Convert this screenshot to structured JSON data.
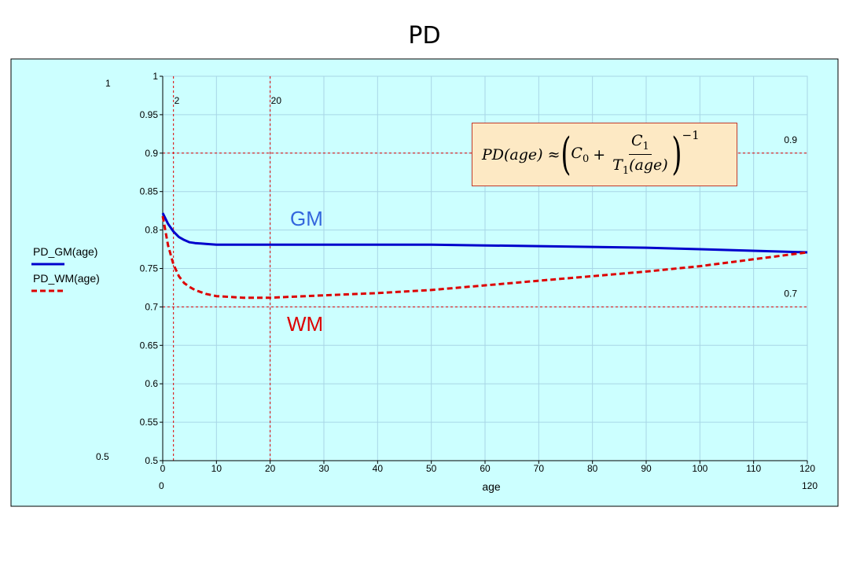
{
  "title": "PD",
  "chart_data": {
    "type": "line",
    "title": "PD",
    "xlabel": "age",
    "xlim": [
      0,
      120
    ],
    "ylim": [
      0.5,
      1
    ],
    "x_ticks": [
      0,
      10,
      20,
      30,
      40,
      50,
      60,
      70,
      80,
      90,
      100,
      110,
      120
    ],
    "y_ticks": [
      0.5,
      0.55,
      0.6,
      0.65,
      0.7,
      0.75,
      0.8,
      0.85,
      0.9,
      0.95,
      1
    ],
    "grid": true,
    "background": "#ccffff",
    "legend_position": "left",
    "series": [
      {
        "name": "PD_GM(age)",
        "color": "#0000cc",
        "style": "solid",
        "x": [
          0,
          1,
          2,
          3,
          4,
          5,
          6,
          8,
          10,
          15,
          20,
          30,
          40,
          50,
          60,
          70,
          80,
          90,
          100,
          110,
          120
        ],
        "y": [
          0.822,
          0.808,
          0.798,
          0.791,
          0.787,
          0.784,
          0.783,
          0.782,
          0.781,
          0.781,
          0.781,
          0.781,
          0.781,
          0.781,
          0.78,
          0.779,
          0.778,
          0.777,
          0.775,
          0.773,
          0.771
        ]
      },
      {
        "name": "PD_WM(age)",
        "color": "#dd0000",
        "style": "dashed",
        "x": [
          0,
          1,
          2,
          3,
          4,
          5,
          6,
          8,
          10,
          15,
          20,
          30,
          40,
          50,
          60,
          70,
          80,
          90,
          100,
          110,
          120
        ],
        "y": [
          0.818,
          0.78,
          0.755,
          0.74,
          0.731,
          0.726,
          0.722,
          0.717,
          0.714,
          0.712,
          0.712,
          0.715,
          0.718,
          0.722,
          0.728,
          0.734,
          0.74,
          0.746,
          0.753,
          0.762,
          0.771
        ]
      }
    ],
    "markers": {
      "vertical": [
        {
          "x": 2,
          "label": "2"
        },
        {
          "x": 20,
          "label": "20"
        }
      ],
      "horizontal": [
        {
          "y": 0.9,
          "label": "0.9"
        },
        {
          "y": 0.7,
          "label": "0.7"
        }
      ],
      "color": "#dd0000"
    },
    "range_labels": {
      "y_top": "1",
      "y_bottom": "0.5",
      "x_left": "0",
      "x_right": "120"
    },
    "annotations": [
      {
        "text": "GM",
        "color": "#3366dd"
      },
      {
        "text": "WM",
        "color": "#dd0000"
      }
    ],
    "formula": {
      "lhs": "PD(age) ≈",
      "c0": "C",
      "c0_sub": "0",
      "plus": "+",
      "num": "C",
      "num_sub": "1",
      "den": "T",
      "den_sub": "1",
      "den_arg": "(age)",
      "exponent": "−1",
      "box_fill": "#fde9c4",
      "box_border": "#c0392b"
    }
  }
}
